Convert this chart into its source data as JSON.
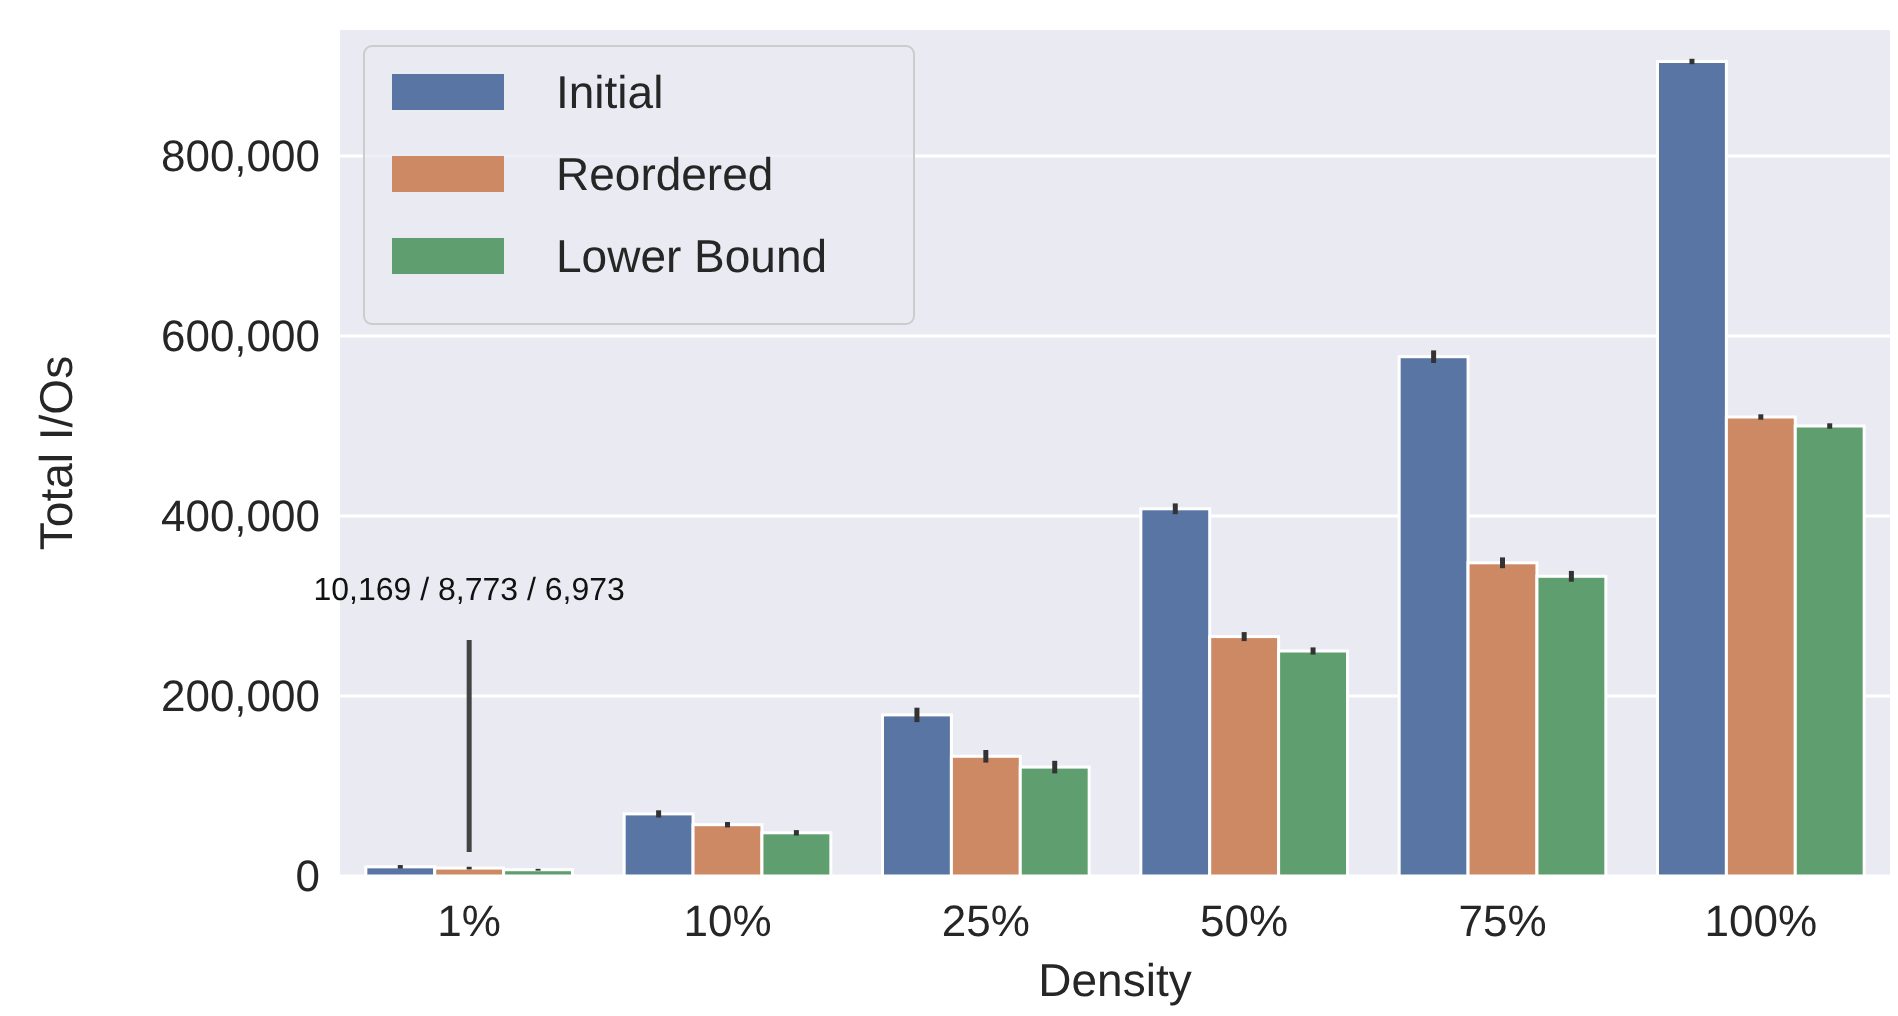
{
  "chart_data": {
    "type": "bar",
    "xlabel": "Density",
    "ylabel": "Total I/Os",
    "categories": [
      "1%",
      "10%",
      "25%",
      "50%",
      "75%",
      "100%"
    ],
    "series": [
      {
        "name": "Initial",
        "color": "#5975a4",
        "values": [
          10169,
          69000,
          179000,
          408000,
          577000,
          905000
        ],
        "errors": [
          2000,
          4000,
          8000,
          6000,
          7000,
          3000
        ]
      },
      {
        "name": "Reordered",
        "color": "#cc8963",
        "values": [
          8773,
          57000,
          133000,
          266000,
          348000,
          510000
        ],
        "errors": [
          1500,
          3000,
          7000,
          5000,
          6000,
          3000
        ]
      },
      {
        "name": "Lower Bound",
        "color": "#5f9e6e",
        "values": [
          6973,
          48000,
          121000,
          250000,
          333000,
          500000
        ],
        "errors": [
          1000,
          3000,
          7000,
          4000,
          6000,
          3000
        ]
      }
    ],
    "ylim": [
      0,
      940000
    ],
    "yticks": [
      {
        "value": 0,
        "label": "0"
      },
      {
        "value": 200000,
        "label": "200,000"
      },
      {
        "value": 400000,
        "label": "400,000"
      },
      {
        "value": 600000,
        "label": "600,000"
      },
      {
        "value": 800000,
        "label": "800,000"
      }
    ],
    "grid": "y",
    "legend": "top left",
    "annotations": [
      "10,169 / 8,773 / 6,973"
    ]
  }
}
